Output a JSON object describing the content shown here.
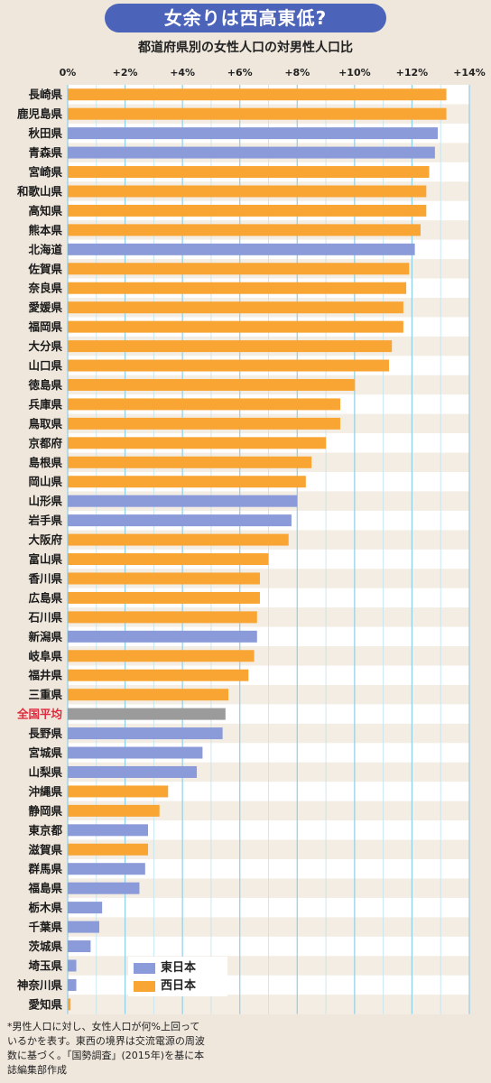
{
  "title": "女余りは西高東低?",
  "subtitle": "都道府県別の女性人口の対男性人口比",
  "colors": {
    "east": "#8b9ad8",
    "west": "#f8a534",
    "average": "#9b9b9b",
    "avg_label": "#e0283c"
  },
  "legend": [
    {
      "name": "東日本",
      "color": "#8b9ad8"
    },
    {
      "name": "西日本",
      "color": "#f8a534"
    }
  ],
  "footnote": "*男性人口に対し、女性人口が何%上回っているかを表す。東西の境界は交流電源の周波数に基づく。「国勢調査」(2015年)を基に本誌編集部作成",
  "chart_data": {
    "type": "bar",
    "orientation": "horizontal",
    "title": "都道府県別の女性人口の対男性人口比",
    "xlim": [
      0,
      14
    ],
    "xticks": [
      "0%",
      "+2%",
      "+4%",
      "+6%",
      "+8%",
      "+10%",
      "+12%",
      "+14%"
    ],
    "grid": true,
    "legend_position": "bottom-left",
    "bars": [
      {
        "label": "長崎県",
        "value": 13.2,
        "group": "west"
      },
      {
        "label": "鹿児島県",
        "value": 13.2,
        "group": "west"
      },
      {
        "label": "秋田県",
        "value": 12.9,
        "group": "east"
      },
      {
        "label": "青森県",
        "value": 12.8,
        "group": "east"
      },
      {
        "label": "宮崎県",
        "value": 12.6,
        "group": "west"
      },
      {
        "label": "和歌山県",
        "value": 12.5,
        "group": "west"
      },
      {
        "label": "高知県",
        "value": 12.5,
        "group": "west"
      },
      {
        "label": "熊本県",
        "value": 12.3,
        "group": "west"
      },
      {
        "label": "北海道",
        "value": 12.1,
        "group": "east"
      },
      {
        "label": "佐賀県",
        "value": 11.9,
        "group": "west"
      },
      {
        "label": "奈良県",
        "value": 11.8,
        "group": "west"
      },
      {
        "label": "愛媛県",
        "value": 11.7,
        "group": "west"
      },
      {
        "label": "福岡県",
        "value": 11.7,
        "group": "west"
      },
      {
        "label": "大分県",
        "value": 11.3,
        "group": "west"
      },
      {
        "label": "山口県",
        "value": 11.2,
        "group": "west"
      },
      {
        "label": "徳島県",
        "value": 10.0,
        "group": "west"
      },
      {
        "label": "兵庫県",
        "value": 9.5,
        "group": "west"
      },
      {
        "label": "鳥取県",
        "value": 9.5,
        "group": "west"
      },
      {
        "label": "京都府",
        "value": 9.0,
        "group": "west"
      },
      {
        "label": "島根県",
        "value": 8.5,
        "group": "west"
      },
      {
        "label": "岡山県",
        "value": 8.3,
        "group": "west"
      },
      {
        "label": "山形県",
        "value": 8.0,
        "group": "east"
      },
      {
        "label": "岩手県",
        "value": 7.8,
        "group": "east"
      },
      {
        "label": "大阪府",
        "value": 7.7,
        "group": "west"
      },
      {
        "label": "富山県",
        "value": 7.0,
        "group": "west"
      },
      {
        "label": "香川県",
        "value": 6.7,
        "group": "west"
      },
      {
        "label": "広島県",
        "value": 6.7,
        "group": "west"
      },
      {
        "label": "石川県",
        "value": 6.6,
        "group": "west"
      },
      {
        "label": "新潟県",
        "value": 6.6,
        "group": "east"
      },
      {
        "label": "岐阜県",
        "value": 6.5,
        "group": "west"
      },
      {
        "label": "福井県",
        "value": 6.3,
        "group": "west"
      },
      {
        "label": "三重県",
        "value": 5.6,
        "group": "west"
      },
      {
        "label": "全国平均",
        "value": 5.5,
        "group": "average"
      },
      {
        "label": "長野県",
        "value": 5.4,
        "group": "east"
      },
      {
        "label": "宮城県",
        "value": 4.7,
        "group": "east"
      },
      {
        "label": "山梨県",
        "value": 4.5,
        "group": "east"
      },
      {
        "label": "沖縄県",
        "value": 3.5,
        "group": "west"
      },
      {
        "label": "静岡県",
        "value": 3.2,
        "group": "west"
      },
      {
        "label": "東京都",
        "value": 2.8,
        "group": "east"
      },
      {
        "label": "滋賀県",
        "value": 2.8,
        "group": "west"
      },
      {
        "label": "群馬県",
        "value": 2.7,
        "group": "east"
      },
      {
        "label": "福島県",
        "value": 2.5,
        "group": "east"
      },
      {
        "label": "栃木県",
        "value": 1.2,
        "group": "east"
      },
      {
        "label": "千葉県",
        "value": 1.1,
        "group": "east"
      },
      {
        "label": "茨城県",
        "value": 0.8,
        "group": "east"
      },
      {
        "label": "埼玉県",
        "value": 0.3,
        "group": "east"
      },
      {
        "label": "神奈川県",
        "value": 0.3,
        "group": "east"
      },
      {
        "label": "愛知県",
        "value": 0.1,
        "group": "west"
      }
    ]
  }
}
